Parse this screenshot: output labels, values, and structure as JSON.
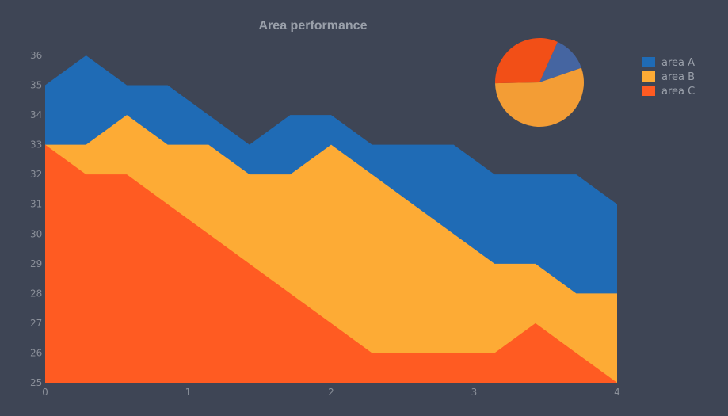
{
  "chart_data": {
    "type": "area",
    "title": "Area performance",
    "xlabel": "",
    "ylabel": "",
    "xlim": [
      0,
      4
    ],
    "ylim": [
      25,
      36
    ],
    "x_ticks": [
      0,
      1,
      2,
      3,
      4
    ],
    "y_ticks": [
      25,
      26,
      27,
      28,
      29,
      30,
      31,
      32,
      33,
      34,
      35,
      36
    ],
    "grid": false,
    "legend_position": "top-right",
    "x": [
      0,
      0.286,
      0.571,
      0.857,
      1.143,
      1.429,
      1.714,
      2.0,
      2.286,
      2.571,
      2.857,
      3.143,
      3.429,
      3.714,
      4.0
    ],
    "series": [
      {
        "name": "area A",
        "color": "#1f6bb5",
        "values": [
          35,
          36,
          35,
          35,
          34,
          33,
          34,
          34,
          33,
          33,
          33,
          32,
          32,
          32,
          31
        ]
      },
      {
        "name": "area B",
        "color": "#fdab35",
        "values": [
          33,
          33,
          34,
          33,
          33,
          32,
          32,
          33,
          32,
          31,
          30,
          29,
          29,
          28,
          28
        ]
      },
      {
        "name": "area C",
        "color": "#ff5b22",
        "values": [
          33,
          32,
          32,
          31,
          30,
          29,
          28,
          27,
          26,
          26,
          26,
          26,
          27,
          26,
          25
        ]
      }
    ],
    "inset_pie": {
      "type": "pie",
      "slices": [
        {
          "name": "area A",
          "value": 13,
          "color": "#4565a1"
        },
        {
          "name": "area B",
          "value": 55,
          "color": "#f39d35"
        },
        {
          "name": "area C",
          "value": 32,
          "color": "#f24f17"
        }
      ]
    }
  }
}
